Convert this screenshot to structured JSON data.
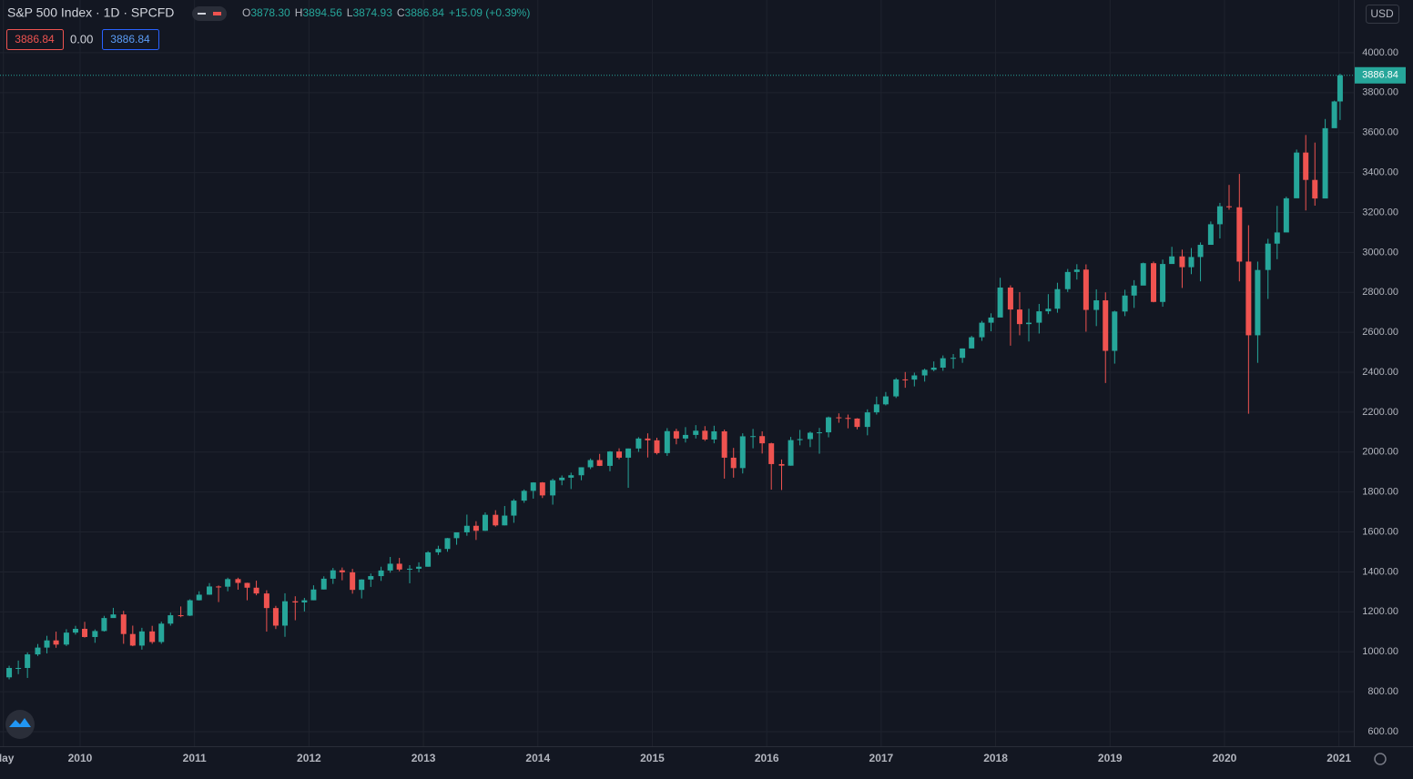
{
  "header": {
    "symbol": "S&P 500 Index · 1D · SPCFD",
    "ohlc": [
      {
        "label": "O",
        "value": "3878.30"
      },
      {
        "label": "H",
        "value": "3894.56"
      },
      {
        "label": "L",
        "value": "3874.93"
      },
      {
        "label": "C",
        "value": "3886.84"
      }
    ],
    "change": "+15.09 (+0.39%)",
    "indicators": [
      "3886.84",
      "0.00",
      "3886.84"
    ],
    "currency": "USD"
  },
  "chart_data": {
    "type": "candlestick",
    "up_color": "#26a69a",
    "down_color": "#ef5350",
    "grid": true,
    "last_price": {
      "value": 3886.84,
      "label": "3886.84"
    },
    "xlim": [
      2009.3,
      2021.13
    ],
    "ylim": [
      527,
      4264
    ],
    "xticks": [
      {
        "value": 2009.33,
        "label": "May"
      },
      2010,
      2011,
      2012,
      2013,
      2014,
      2015,
      2016,
      2017,
      2018,
      2019,
      2020,
      2021
    ],
    "yticks": [
      {
        "value": 600,
        "label": "600.00"
      },
      {
        "value": 800,
        "label": "800.00"
      },
      {
        "value": 1000,
        "label": "1000.00"
      },
      {
        "value": 1200,
        "label": "1200.00"
      },
      {
        "value": 1400,
        "label": "1400.00"
      },
      {
        "value": 1600,
        "label": "1600.00"
      },
      {
        "value": 1800,
        "label": "1800.00"
      },
      {
        "value": 2000,
        "label": "2000.00"
      },
      {
        "value": 2200,
        "label": "2200.00"
      },
      {
        "value": 2400,
        "label": "2400.00"
      },
      {
        "value": 2600,
        "label": "2600.00"
      },
      {
        "value": 2800,
        "label": "2800.00"
      },
      {
        "value": 3000,
        "label": "3000.00"
      },
      {
        "value": 3200,
        "label": "3200.00"
      },
      {
        "value": 3400,
        "label": "3400.00"
      },
      {
        "value": 3600,
        "label": "3600.00"
      },
      {
        "value": 3800,
        "label": "3800.00"
      },
      {
        "value": 4000,
        "label": "4000.00"
      }
    ],
    "x": [
      2009.38,
      2009.46,
      2009.54,
      2009.63,
      2009.71,
      2009.79,
      2009.88,
      2009.96,
      2010.04,
      2010.13,
      2010.21,
      2010.29,
      2010.38,
      2010.46,
      2010.54,
      2010.63,
      2010.71,
      2010.79,
      2010.88,
      2010.96,
      2011.04,
      2011.13,
      2011.21,
      2011.29,
      2011.38,
      2011.46,
      2011.54,
      2011.63,
      2011.71,
      2011.79,
      2011.88,
      2011.96,
      2012.04,
      2012.13,
      2012.21,
      2012.29,
      2012.38,
      2012.46,
      2012.54,
      2012.63,
      2012.71,
      2012.79,
      2012.88,
      2012.96,
      2013.04,
      2013.13,
      2013.21,
      2013.29,
      2013.38,
      2013.46,
      2013.54,
      2013.63,
      2013.71,
      2013.79,
      2013.88,
      2013.96,
      2014.04,
      2014.13,
      2014.21,
      2014.29,
      2014.38,
      2014.46,
      2014.54,
      2014.63,
      2014.71,
      2014.79,
      2014.88,
      2014.96,
      2015.04,
      2015.13,
      2015.21,
      2015.29,
      2015.38,
      2015.46,
      2015.54,
      2015.63,
      2015.71,
      2015.79,
      2015.88,
      2015.96,
      2016.04,
      2016.13,
      2016.21,
      2016.29,
      2016.38,
      2016.46,
      2016.54,
      2016.63,
      2016.71,
      2016.79,
      2016.88,
      2016.96,
      2017.04,
      2017.13,
      2017.21,
      2017.29,
      2017.38,
      2017.46,
      2017.54,
      2017.63,
      2017.71,
      2017.79,
      2017.88,
      2017.96,
      2018.04,
      2018.13,
      2018.21,
      2018.29,
      2018.38,
      2018.46,
      2018.54,
      2018.63,
      2018.71,
      2018.79,
      2018.88,
      2018.96,
      2019.04,
      2019.13,
      2019.21,
      2019.29,
      2019.38,
      2019.46,
      2019.54,
      2019.63,
      2019.71,
      2019.79,
      2019.88,
      2019.96,
      2020.04,
      2020.13,
      2020.21,
      2020.29,
      2020.38,
      2020.46,
      2020.54,
      2020.63,
      2020.71,
      2020.79,
      2020.88,
      2020.96,
      2021.01
    ],
    "open": [
      872,
      919,
      919,
      987,
      1021,
      1057,
      1036,
      1096,
      1115,
      1074,
      1104,
      1169,
      1187,
      1089,
      1031,
      1102,
      1049,
      1141,
      1183,
      1181,
      1258,
      1286,
      1327,
      1326,
      1364,
      1345,
      1321,
      1292,
      1219,
      1131,
      1253,
      1247,
      1258,
      1312,
      1366,
      1408,
      1398,
      1310,
      1362,
      1379,
      1407,
      1441,
      1412,
      1416,
      1426,
      1498,
      1515,
      1569,
      1598,
      1631,
      1606,
      1686,
      1633,
      1682,
      1757,
      1806,
      1848,
      1783,
      1859,
      1872,
      1884,
      1924,
      1960,
      1931,
      2003,
      1972,
      2018,
      2068,
      2059,
      1995,
      2105,
      2068,
      2086,
      2107,
      2063,
      2104,
      1972,
      1920,
      2079,
      2080,
      2044,
      1940,
      1932,
      2060,
      2065,
      2097,
      2099,
      2174,
      2171,
      2168,
      2126,
      2199,
      2239,
      2279,
      2364,
      2363,
      2384,
      2412,
      2423,
      2470,
      2472,
      2519,
      2575,
      2648,
      2674,
      2824,
      2714,
      2641,
      2648,
      2705,
      2718,
      2816,
      2902,
      2914,
      2712,
      2760,
      2507,
      2704,
      2784,
      2834,
      2946,
      2752,
      2942,
      2980,
      2926,
      2977,
      3038,
      3141,
      3231,
      3226,
      2954,
      2585,
      2912,
      3044,
      3100,
      3271,
      3500,
      3363,
      3270,
      3622,
      3756
    ],
    "high": [
      930,
      956,
      997,
      1039,
      1080,
      1101,
      1113,
      1130,
      1150,
      1112,
      1180,
      1220,
      1205,
      1131,
      1120,
      1130,
      1151,
      1196,
      1227,
      1263,
      1303,
      1344,
      1332,
      1371,
      1371,
      1346,
      1356,
      1308,
      1230,
      1293,
      1278,
      1270,
      1333,
      1378,
      1420,
      1422,
      1415,
      1363,
      1392,
      1426,
      1475,
      1470,
      1434,
      1448,
      1504,
      1531,
      1570,
      1598,
      1687,
      1654,
      1698,
      1709,
      1730,
      1765,
      1813,
      1849,
      1850,
      1867,
      1883,
      1897,
      1924,
      1968,
      1991,
      2005,
      2019,
      2018,
      2075,
      2094,
      2072,
      2120,
      2117,
      2125,
      2135,
      2130,
      2132,
      2113,
      2021,
      2094,
      2116,
      2104,
      2047,
      1963,
      2076,
      2111,
      2103,
      2121,
      2178,
      2194,
      2188,
      2170,
      2214,
      2278,
      2301,
      2371,
      2401,
      2398,
      2418,
      2454,
      2484,
      2491,
      2519,
      2582,
      2657,
      2695,
      2873,
      2835,
      2801,
      2718,
      2742,
      2791,
      2848,
      2917,
      2941,
      2940,
      2815,
      2800,
      2708,
      2813,
      2861,
      2949,
      2954,
      2964,
      3028,
      3014,
      3022,
      3050,
      3155,
      3248,
      3338,
      3393,
      3136,
      2954,
      3068,
      3233,
      3279,
      3515,
      3588,
      3550,
      3668,
      3760,
      3894.56
    ],
    "low": [
      862,
      888,
      869,
      979,
      992,
      1020,
      1029,
      1086,
      1071,
      1045,
      1101,
      1170,
      1040,
      1028,
      1011,
      1040,
      1040,
      1131,
      1173,
      1179,
      1257,
      1285,
      1249,
      1303,
      1311,
      1258,
      1283,
      1101,
      1114,
      1075,
      1158,
      1202,
      1258,
      1312,
      1340,
      1358,
      1291,
      1267,
      1325,
      1355,
      1396,
      1403,
      1343,
      1398,
      1426,
      1485,
      1501,
      1536,
      1581,
      1560,
      1605,
      1627,
      1633,
      1646,
      1746,
      1767,
      1770,
      1737,
      1834,
      1815,
      1859,
      1915,
      1930,
      1904,
      1964,
      1821,
      2001,
      1973,
      1988,
      1981,
      2039,
      2048,
      2068,
      2056,
      2044,
      1867,
      1872,
      1893,
      2019,
      1993,
      1812,
      1810,
      1932,
      2034,
      2025,
      1992,
      2074,
      2147,
      2119,
      2114,
      2084,
      2188,
      2234,
      2271,
      2322,
      2329,
      2353,
      2405,
      2407,
      2418,
      2447,
      2520,
      2557,
      2605,
      2683,
      2533,
      2585,
      2554,
      2594,
      2691,
      2698,
      2802,
      2864,
      2603,
      2631,
      2346,
      2443,
      2681,
      2722,
      2848,
      2750,
      2728,
      2952,
      2822,
      2891,
      2855,
      3050,
      3070,
      3214,
      2855,
      2192,
      2447,
      2767,
      2966,
      3115,
      3284,
      3210,
      3234,
      3280,
      3634,
      3663
    ],
    "close": [
      919,
      919,
      987,
      1021,
      1057,
      1036,
      1096,
      1115,
      1074,
      1104,
      1169,
      1187,
      1089,
      1031,
      1102,
      1049,
      1141,
      1183,
      1181,
      1258,
      1286,
      1327,
      1326,
      1364,
      1345,
      1321,
      1292,
      1219,
      1131,
      1253,
      1247,
      1258,
      1312,
      1366,
      1408,
      1398,
      1310,
      1362,
      1379,
      1407,
      1441,
      1412,
      1416,
      1426,
      1498,
      1515,
      1569,
      1598,
      1631,
      1606,
      1686,
      1633,
      1682,
      1757,
      1806,
      1848,
      1783,
      1859,
      1872,
      1884,
      1924,
      1960,
      1931,
      2003,
      1972,
      2018,
      2068,
      2059,
      1995,
      2105,
      2068,
      2086,
      2107,
      2063,
      2104,
      1972,
      1920,
      2079,
      2080,
      2044,
      1940,
      1932,
      2060,
      2065,
      2097,
      2099,
      2174,
      2171,
      2168,
      2126,
      2199,
      2239,
      2279,
      2364,
      2363,
      2384,
      2412,
      2423,
      2470,
      2472,
      2519,
      2575,
      2648,
      2674,
      2824,
      2714,
      2641,
      2648,
      2705,
      2718,
      2816,
      2902,
      2914,
      2712,
      2760,
      2507,
      2704,
      2784,
      2834,
      2946,
      2752,
      2942,
      2980,
      2926,
      2977,
      3038,
      3141,
      3231,
      3226,
      2954,
      2585,
      2912,
      3044,
      3100,
      3271,
      3500,
      3363,
      3270,
      3622,
      3756,
      3886.84
    ]
  }
}
